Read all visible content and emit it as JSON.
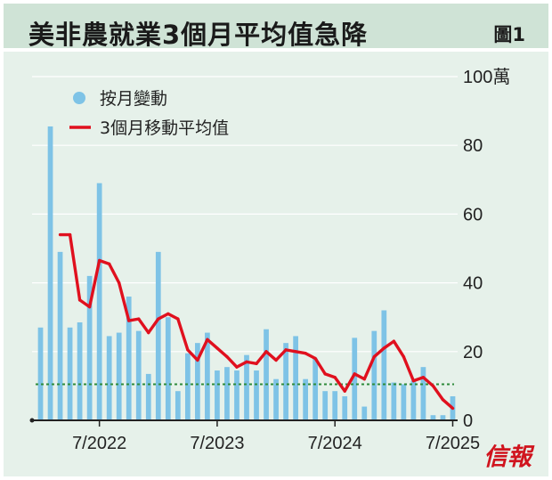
{
  "header": {
    "title": "美非農就業3個月平均值急降",
    "figure_label": "圖1"
  },
  "publisher": {
    "logo_text": "信報"
  },
  "colors": {
    "bar": "#7ec3e6",
    "line": "#e0101e",
    "reference_line": "#2e8b3a",
    "grid": "#ffffff",
    "axis": "#222222",
    "title_bg": "#cfe3d6",
    "plot_bg": "#e6f1ea"
  },
  "chart_data": {
    "type": "bar+line",
    "y_unit_label": "100萬",
    "ylim": [
      0,
      100
    ],
    "y_ticks": [
      "0",
      "20",
      "40",
      "60",
      "80",
      "100萬"
    ],
    "y_tick_values": [
      0,
      20,
      40,
      60,
      80,
      100
    ],
    "x_tick_labels": [
      "7/2022",
      "7/2023",
      "7/2024",
      "7/2025"
    ],
    "x_tick_months": [
      7,
      19,
      31,
      43
    ],
    "months_start": "1/2022",
    "grid": "horizontal",
    "y_axis_side": "right",
    "legend": {
      "placement": "top-left",
      "entries": [
        {
          "label": "按月變動",
          "symbol": "dot"
        },
        {
          "label": "3個月移動平均值",
          "symbol": "line"
        }
      ]
    },
    "series": [
      {
        "name": "按月變動",
        "type": "bar",
        "values": [
          27,
          85.5,
          49,
          27,
          28.5,
          42,
          69,
          24.5,
          25.5,
          36,
          26,
          13.5,
          49,
          30,
          8.5,
          19.5,
          22.5,
          25.5,
          14.5,
          15.5,
          14.5,
          19,
          14.5,
          26.5,
          12,
          22.5,
          24.5,
          12,
          18,
          8.5,
          8.5,
          7,
          24,
          4,
          26,
          32,
          11,
          10.5,
          11.5,
          15.5,
          1.5,
          1.5,
          7
        ]
      },
      {
        "name": "3個月移動平均值",
        "type": "line",
        "values": [
          null,
          null,
          54,
          54,
          35,
          33,
          46.5,
          45.5,
          40,
          29,
          29.5,
          25.5,
          29.5,
          31,
          29.5,
          20.5,
          17.5,
          23.5,
          21,
          18.5,
          15.5,
          17,
          16.5,
          20,
          17.5,
          20.5,
          20,
          19.5,
          18,
          13.5,
          12.5,
          8.5,
          13.5,
          12,
          18.5,
          21,
          23,
          18.5,
          11.5,
          12.5,
          10,
          6,
          3.5
        ]
      }
    ],
    "reference_line": {
      "value": 10.5,
      "style": "dotted"
    }
  }
}
